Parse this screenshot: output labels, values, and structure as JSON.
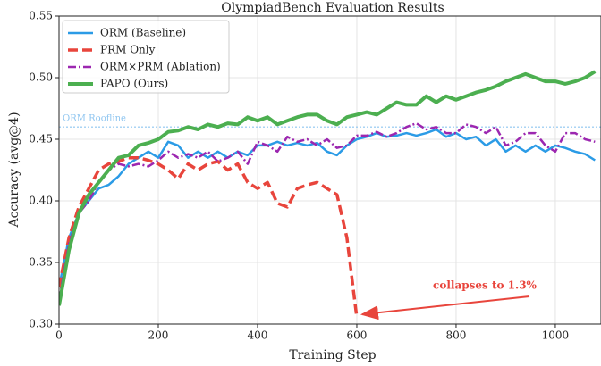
{
  "chart_data": {
    "type": "line",
    "title": "OlympiadBench Evaluation Results",
    "xlabel": "Training Step",
    "ylabel": "Accuracy (avg@4)",
    "x": [
      0,
      20,
      40,
      60,
      80,
      100,
      120,
      140,
      160,
      180,
      200,
      220,
      240,
      260,
      280,
      300,
      320,
      340,
      360,
      380,
      400,
      420,
      440,
      460,
      480,
      500,
      520,
      540,
      560,
      580,
      600,
      620,
      640,
      660,
      680,
      700,
      720,
      740,
      760,
      780,
      800,
      820,
      840,
      860,
      880,
      900,
      920,
      940,
      960,
      980,
      1000,
      1020,
      1040,
      1060,
      1080
    ],
    "series": [
      {
        "name": "ORM (Baseline)",
        "color": "#2b9be6",
        "style": "solid",
        "values": [
          0.33,
          0.37,
          0.39,
          0.4,
          0.41,
          0.413,
          0.42,
          0.43,
          0.435,
          0.44,
          0.435,
          0.448,
          0.445,
          0.435,
          0.44,
          0.435,
          0.44,
          0.435,
          0.44,
          0.437,
          0.445,
          0.445,
          0.448,
          0.445,
          0.447,
          0.445,
          0.447,
          0.44,
          0.437,
          0.445,
          0.45,
          0.452,
          0.455,
          0.452,
          0.453,
          0.455,
          0.453,
          0.455,
          0.458,
          0.452,
          0.455,
          0.45,
          0.452,
          0.445,
          0.45,
          0.44,
          0.445,
          0.44,
          0.445,
          0.44,
          0.445,
          0.443,
          0.44,
          0.438,
          0.433
        ]
      },
      {
        "name": "PRM Only",
        "color": "#e8453c",
        "style": "dashed",
        "values": [
          0.33,
          0.37,
          0.395,
          0.41,
          0.425,
          0.43,
          0.432,
          0.435,
          0.435,
          0.433,
          0.43,
          0.425,
          0.418,
          0.43,
          0.425,
          0.43,
          0.432,
          0.425,
          0.43,
          0.415,
          0.41,
          0.415,
          0.398,
          0.395,
          0.41,
          0.413,
          0.415,
          0.41,
          0.405,
          0.37,
          0.305,
          null,
          null,
          null,
          null,
          null,
          null,
          null,
          null,
          null,
          null,
          null,
          null,
          null,
          null,
          null,
          null,
          null,
          null,
          null,
          null,
          null,
          null,
          null,
          null
        ]
      },
      {
        "name": "ORM×PRM (Ablation)",
        "color": "#9c27b0",
        "style": "dashdot",
        "values": [
          0.32,
          0.365,
          0.39,
          0.4,
          0.415,
          0.425,
          0.43,
          0.428,
          0.43,
          0.428,
          0.433,
          0.44,
          0.435,
          0.438,
          0.435,
          0.44,
          0.432,
          0.435,
          0.44,
          0.43,
          0.448,
          0.445,
          0.44,
          0.452,
          0.448,
          0.45,
          0.445,
          0.45,
          0.443,
          0.445,
          0.453,
          0.453,
          0.456,
          0.452,
          0.455,
          0.46,
          0.463,
          0.458,
          0.46,
          0.455,
          0.455,
          0.462,
          0.46,
          0.455,
          0.46,
          0.445,
          0.448,
          0.455,
          0.455,
          0.445,
          0.44,
          0.455,
          0.455,
          0.45,
          0.448
        ]
      },
      {
        "name": "PAPO (Ours)",
        "color": "#4caf50",
        "style": "thick",
        "values": [
          0.315,
          0.36,
          0.39,
          0.405,
          0.415,
          0.425,
          0.435,
          0.437,
          0.445,
          0.447,
          0.45,
          0.456,
          0.457,
          0.46,
          0.458,
          0.462,
          0.46,
          0.463,
          0.462,
          0.468,
          0.465,
          0.468,
          0.462,
          0.465,
          0.468,
          0.47,
          0.47,
          0.465,
          0.462,
          0.468,
          0.47,
          0.472,
          0.47,
          0.475,
          0.48,
          0.478,
          0.478,
          0.485,
          0.48,
          0.485,
          0.482,
          0.485,
          0.488,
          0.49,
          0.493,
          0.497,
          0.5,
          0.503,
          0.5,
          0.497,
          0.497,
          0.495,
          0.497,
          0.5,
          0.505
        ]
      }
    ],
    "xlim": [
      0,
      1092
    ],
    "ylim": [
      0.3,
      0.55
    ],
    "xticks": [
      0,
      200,
      400,
      600,
      800,
      1000
    ],
    "yticks": [
      {
        "value": 0.3,
        "label": "0.30"
      },
      {
        "value": 0.35,
        "label": "0.35"
      },
      {
        "value": 0.4,
        "label": "0.40"
      },
      {
        "value": 0.45,
        "label": "0.45"
      },
      {
        "value": 0.5,
        "label": "0.50"
      },
      {
        "value": 0.55,
        "label": "0.55"
      }
    ],
    "grid": true,
    "legend": "upper left",
    "reference_line": {
      "value": 0.46,
      "label": "ORM Roofline",
      "color": "#8ec5f0"
    },
    "annotation": {
      "text": "collapses to 1.3%",
      "color": "#e8453c"
    }
  }
}
